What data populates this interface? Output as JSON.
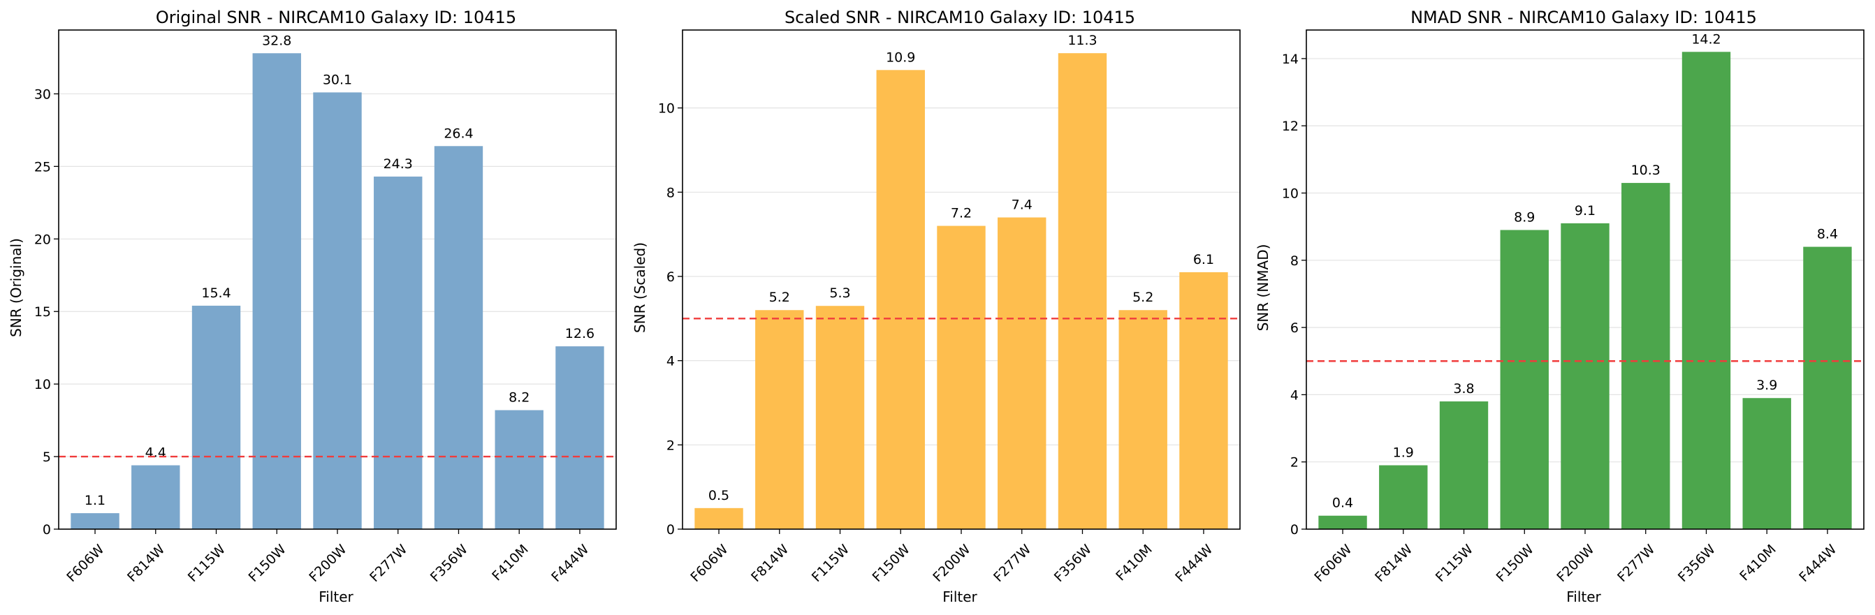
{
  "chart_data": [
    {
      "type": "bar",
      "title": "Original SNR - NIRCAM10 Galaxy ID: 10415",
      "xlabel": "Filter",
      "ylabel": "SNR (Original)",
      "categories": [
        "F606W",
        "F814W",
        "F115W",
        "F150W",
        "F200W",
        "F277W",
        "F356W",
        "F410M",
        "F444W"
      ],
      "values": [
        1.1,
        4.4,
        15.4,
        32.8,
        30.1,
        24.3,
        26.4,
        8.2,
        12.6
      ],
      "value_labels": [
        "1.1",
        "4.4",
        "15.4",
        "32.8",
        "30.1",
        "24.3",
        "26.4",
        "8.2",
        "12.6"
      ],
      "ylim": [
        0,
        34.4
      ],
      "yticks": [
        0,
        5,
        10,
        15,
        20,
        25,
        30
      ],
      "threshold": 5,
      "bar_color": "#7ba7cc",
      "grid": "horizontal"
    },
    {
      "type": "bar",
      "title": "Scaled SNR - NIRCAM10 Galaxy ID: 10415",
      "xlabel": "Filter",
      "ylabel": "SNR (Scaled)",
      "categories": [
        "F606W",
        "F814W",
        "F115W",
        "F150W",
        "F200W",
        "F277W",
        "F356W",
        "F410M",
        "F444W"
      ],
      "values": [
        0.5,
        5.2,
        5.3,
        10.9,
        7.2,
        7.4,
        11.3,
        5.2,
        6.1
      ],
      "value_labels": [
        "0.5",
        "5.2",
        "5.3",
        "10.9",
        "7.2",
        "7.4",
        "11.3",
        "5.2",
        "6.1"
      ],
      "ylim": [
        0,
        11.85
      ],
      "yticks": [
        0,
        2,
        4,
        6,
        8,
        10
      ],
      "threshold": 5,
      "bar_color": "#febe4e",
      "grid": "horizontal"
    },
    {
      "type": "bar",
      "title": "NMAD SNR - NIRCAM10 Galaxy ID: 10415",
      "xlabel": "Filter",
      "ylabel": "SNR (NMAD)",
      "categories": [
        "F606W",
        "F814W",
        "F115W",
        "F150W",
        "F200W",
        "F277W",
        "F356W",
        "F410M",
        "F444W"
      ],
      "values": [
        0.4,
        1.9,
        3.8,
        8.9,
        9.1,
        10.3,
        14.2,
        3.9,
        8.4
      ],
      "value_labels": [
        "0.4",
        "1.9",
        "3.8",
        "8.9",
        "9.1",
        "10.3",
        "14.2",
        "3.9",
        "8.4"
      ],
      "ylim": [
        0,
        14.85
      ],
      "yticks": [
        0,
        2,
        4,
        6,
        8,
        10,
        12,
        14
      ],
      "threshold": 5,
      "bar_color": "#4ca64c",
      "grid": "horizontal"
    }
  ]
}
